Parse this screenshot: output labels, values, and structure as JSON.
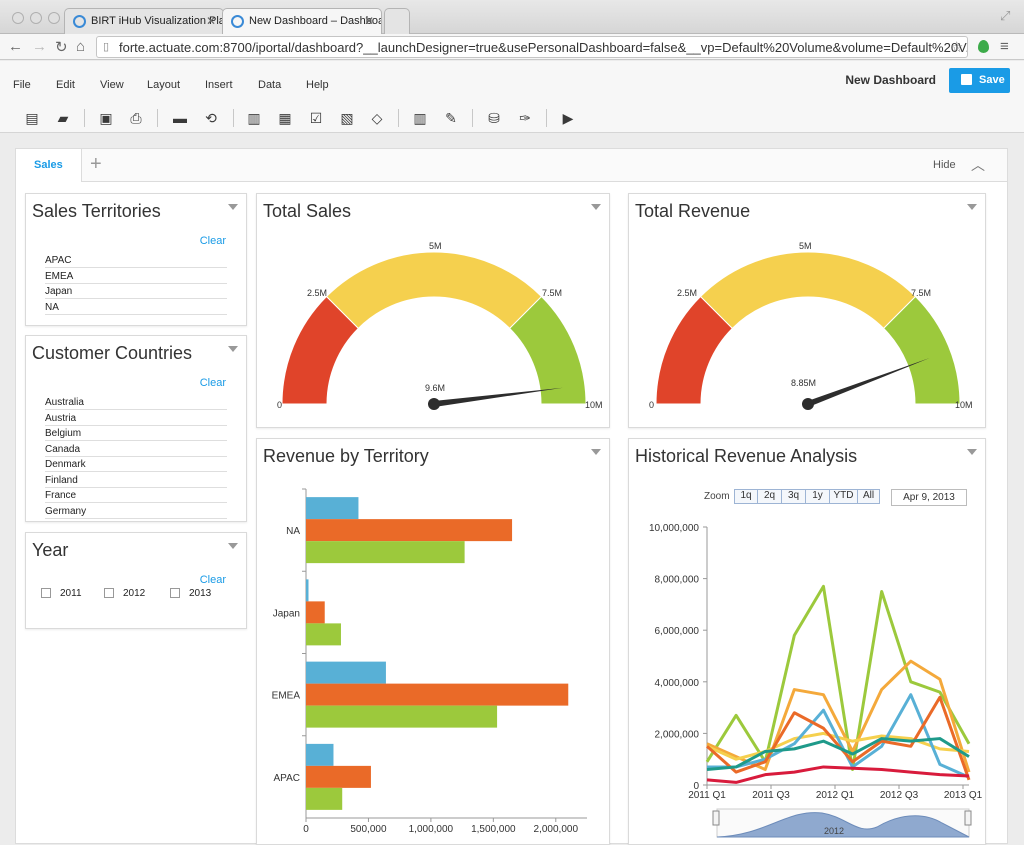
{
  "browser": {
    "tabs": [
      {
        "title": "BIRT iHub Visualization Pla"
      },
      {
        "title": "New Dashboard – Dashboa"
      }
    ],
    "url": "forte.actuate.com:8700/iportal/dashboard?__launchDesigner=true&usePersonalDashboard=false&__vp=Default%20Volume&volume=Default%20V..."
  },
  "app": {
    "menus": [
      "File",
      "Edit",
      "View",
      "Layout",
      "Insert",
      "Data",
      "Help"
    ],
    "dashboard_name": "New Dashboard",
    "save_label": "Save",
    "toolbar_icons": [
      "new-dashboard-icon",
      "open-folder-icon",
      "save-icon",
      "print-icon",
      "add-content-icon",
      "refresh-icon",
      "chart-gadget-icon",
      "table-gadget-icon",
      "selector-gadget-icon",
      "report-gadget-icon",
      "html-gadget-icon",
      "columns-icon",
      "edit-icon",
      "database-icon",
      "wrench-icon",
      "video-icon"
    ]
  },
  "tabstrip": {
    "active_tab": "Sales",
    "hide_label": "Hide"
  },
  "sales_territories": {
    "title": "Sales Territories",
    "clear": "Clear",
    "items": [
      "APAC",
      "EMEA",
      "Japan",
      "NA"
    ]
  },
  "customer_countries": {
    "title": "Customer Countries",
    "clear": "Clear",
    "items": [
      "Australia",
      "Austria",
      "Belgium",
      "Canada",
      "Denmark",
      "Finland",
      "France",
      "Germany"
    ]
  },
  "year": {
    "title": "Year",
    "clear": "Clear",
    "options": [
      "2011",
      "2012",
      "2013"
    ]
  },
  "total_sales": {
    "title": "Total Sales",
    "min_label": "0",
    "max_label": "10M",
    "tick_labels": [
      "2.5M",
      "5M",
      "7.5M"
    ],
    "value_label": "9.6M",
    "value": 9.6,
    "max": 10,
    "bands": [
      {
        "from": 0,
        "to": 2.5,
        "color": "#e0442a"
      },
      {
        "from": 2.5,
        "to": 7.5,
        "color": "#f5d04e"
      },
      {
        "from": 7.5,
        "to": 10,
        "color": "#9cc93c"
      }
    ]
  },
  "total_revenue": {
    "title": "Total Revenue",
    "min_label": "0",
    "max_label": "10M",
    "tick_labels": [
      "2.5M",
      "5M",
      "7.5M"
    ],
    "value_label": "8.85M",
    "value": 8.85,
    "max": 10,
    "bands": [
      {
        "from": 0,
        "to": 2.5,
        "color": "#e0442a"
      },
      {
        "from": 2.5,
        "to": 7.5,
        "color": "#f5d04e"
      },
      {
        "from": 7.5,
        "to": 10,
        "color": "#9cc93c"
      }
    ]
  },
  "revenue_by_territory": {
    "title": "Revenue by Territory",
    "chart_data": {
      "type": "bar",
      "orientation": "horizontal",
      "categories": [
        "NA",
        "Japan",
        "EMEA",
        "APAC"
      ],
      "series": [
        {
          "values": [
            420000,
            20000,
            640000,
            220000
          ],
          "color": "#58b0d6"
        },
        {
          "values": [
            1650000,
            150000,
            2100000,
            520000
          ],
          "color": "#ea6a28"
        },
        {
          "values": [
            1270000,
            280000,
            1530000,
            290000
          ],
          "color": "#9cc93c"
        }
      ],
      "xlim": [
        0,
        2250000
      ],
      "xticks": [
        "0",
        "500,000",
        "1,000,000",
        "1,500,000",
        "2,000,000"
      ],
      "xtick_values": [
        0,
        500000,
        1000000,
        1500000,
        2000000
      ]
    }
  },
  "historical_revenue": {
    "title": "Historical Revenue Analysis",
    "zoom_label": "Zoom",
    "zoom_buttons": [
      "1q",
      "2q",
      "3q",
      "1y",
      "YTD",
      "All"
    ],
    "date_field": "Apr 9, 2013",
    "navigator_label": "2012",
    "chart_data": {
      "type": "line",
      "ylim": [
        0,
        10000000
      ],
      "yticks": [
        "0",
        "2,000,000",
        "4,000,000",
        "6,000,000",
        "8,000,000",
        "10,000,000"
      ],
      "ytick_values": [
        0,
        2000000,
        4000000,
        6000000,
        8000000,
        10000000
      ],
      "xticks": [
        "2011 Q1",
        "2011 Q3",
        "2012 Q1",
        "2012 Q3",
        "2013 Q1"
      ],
      "series": [
        {
          "color": "#9cc93c",
          "values": [
            900000,
            2700000,
            900000,
            5800000,
            7700000,
            600000,
            7500000,
            4000000,
            3600000,
            1600000
          ]
        },
        {
          "color": "#f4a93b",
          "values": [
            1600000,
            1100000,
            600000,
            3700000,
            3500000,
            1300000,
            3700000,
            4800000,
            4100000,
            500000
          ]
        },
        {
          "color": "#f5d04e",
          "values": [
            1500000,
            1000000,
            1300000,
            1800000,
            2000000,
            1700000,
            1900000,
            1800000,
            1400000,
            1300000
          ]
        },
        {
          "color": "#58b0d6",
          "values": [
            700000,
            700000,
            1000000,
            1600000,
            2900000,
            700000,
            1500000,
            3500000,
            800000,
            300000
          ]
        },
        {
          "color": "#ea6a28",
          "values": [
            1500000,
            500000,
            900000,
            2800000,
            2200000,
            900000,
            1700000,
            1500000,
            3400000,
            200000
          ]
        },
        {
          "color": "#1e9a8a",
          "values": [
            600000,
            700000,
            1300000,
            1400000,
            1700000,
            1200000,
            1800000,
            1700000,
            1800000,
            1100000
          ]
        },
        {
          "color": "#d81b3c",
          "values": [
            200000,
            100000,
            400000,
            500000,
            700000,
            650000,
            600000,
            500000,
            400000,
            350000
          ]
        }
      ]
    }
  }
}
